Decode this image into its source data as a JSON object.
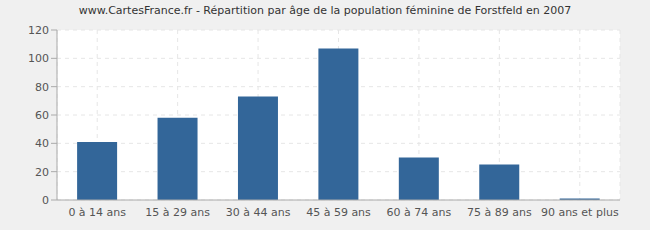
{
  "chart_data": {
    "type": "bar",
    "title": "www.CartesFrance.fr - Répartition par âge de la population féminine de Forstfeld en 2007",
    "categories": [
      "0 à 14 ans",
      "15 à 29 ans",
      "30 à 44 ans",
      "45 à 59 ans",
      "60 à 74 ans",
      "75 à 89 ans",
      "90 ans et plus"
    ],
    "values": [
      41,
      58,
      73,
      107,
      30,
      25,
      1
    ],
    "color": "#336699",
    "ylim": [
      0,
      120
    ],
    "yticks": [
      0,
      20,
      40,
      60,
      80,
      100,
      120
    ],
    "grid": true
  }
}
